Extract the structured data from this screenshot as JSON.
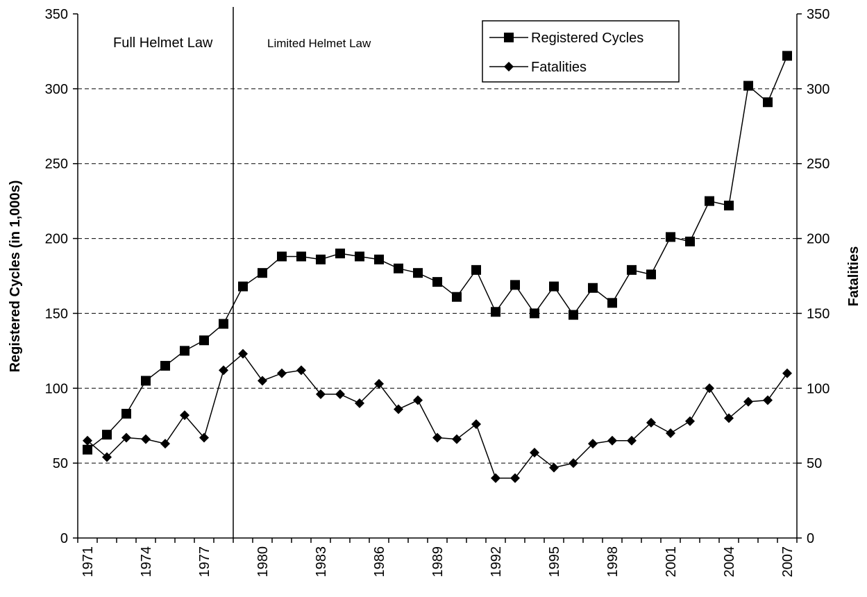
{
  "chart_data": {
    "type": "line",
    "categories": [
      "1971",
      null,
      null,
      "1974",
      null,
      null,
      "1977",
      null,
      null,
      "1980",
      null,
      null,
      "1983",
      null,
      null,
      "1986",
      null,
      null,
      "1989",
      null,
      null,
      "1992",
      null,
      null,
      "1995",
      null,
      null,
      "1998",
      null,
      null,
      "2001",
      null,
      null,
      "2004",
      null,
      null,
      "2007"
    ],
    "series": [
      {
        "name": "Registered Cycles",
        "color": "#000000",
        "marker": "square",
        "values": [
          59,
          69,
          83,
          105,
          115,
          125,
          132,
          143,
          168,
          177,
          188,
          188,
          186,
          190,
          188,
          186,
          180,
          177,
          171,
          161,
          179,
          151,
          169,
          150,
          168,
          149,
          167,
          157,
          179,
          176,
          201,
          198,
          225,
          222,
          302,
          291,
          322
        ]
      },
      {
        "name": "Fatalities",
        "color": "#000000",
        "marker": "diamond",
        "axis": "y2",
        "values": [
          65,
          54,
          67,
          66,
          63,
          82,
          67,
          112,
          123,
          105,
          110,
          112,
          96,
          96,
          90,
          103,
          86,
          92,
          67,
          66,
          76,
          40,
          40,
          57,
          47,
          50,
          63,
          65,
          65,
          77,
          70,
          78,
          100,
          80,
          91,
          92,
          110
        ]
      }
    ],
    "ylabel": "Registered Cycles (in 1,000s)",
    "y2label": "Fatalities",
    "ylim": [
      0,
      350
    ],
    "yticks": [
      0,
      50,
      100,
      150,
      200,
      250,
      300,
      350
    ],
    "y2lim": [
      0,
      350
    ],
    "y2ticks": [
      0,
      50,
      100,
      150,
      200,
      250,
      300,
      350
    ],
    "annotations": [
      "Full Helmet Law",
      "Limited Helmet Law"
    ],
    "grid": true,
    "legend": "upper right"
  }
}
